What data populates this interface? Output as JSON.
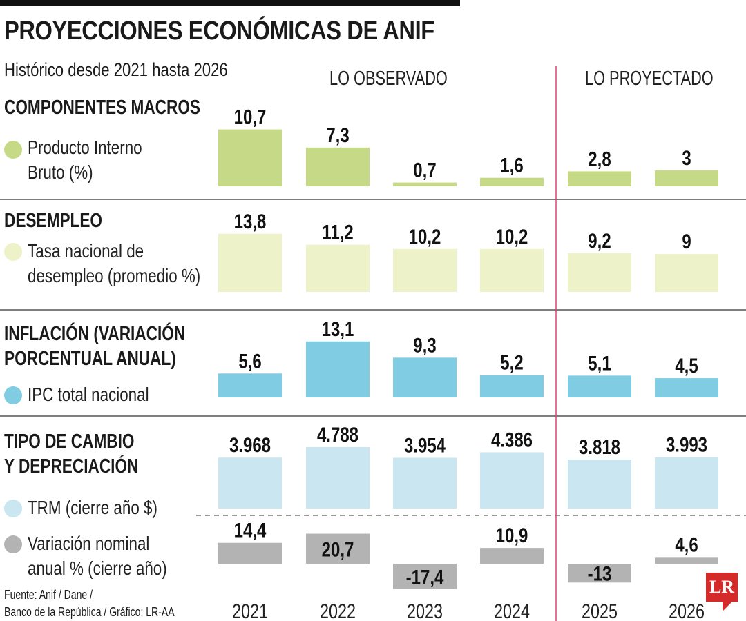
{
  "title": "PROYECCIONES ECONÓMICAS DE ANIF",
  "subtitle": "Histórico desde 2021 hasta 2026",
  "observed_label": "LO OBSERVADO",
  "projected_label": "LO PROYECTADO",
  "source": [
    "Fuente: Anif / Dane /",
    "Banco de la República / Gráfico: LR-AA"
  ],
  "logo": "LR",
  "colors": {
    "gdp": "#c5d986",
    "unemployment": "#eef2c8",
    "inflation": "#80cce3",
    "trm": "#c9e6f1",
    "variation": "#b3b3b3",
    "divider": "#d8437c"
  },
  "sections": [
    {
      "title": [
        "COMPONENTES MACROS"
      ],
      "legend": [
        "Producto Interno",
        "Bruto (%)"
      ]
    },
    {
      "title": [
        "DESEMPLEO"
      ],
      "legend": [
        "Tasa nacional de",
        "desempleo (promedio %)"
      ]
    },
    {
      "title": [
        "INFLACIÓN (VARIACIÓN",
        "PORCENTUAL ANUAL)"
      ],
      "legend": [
        "IPC total nacional"
      ]
    },
    {
      "title": [
        "TIPO DE CAMBIO",
        "Y DEPRECIACIÓN"
      ],
      "legend": [
        "TRM (cierre año $)"
      ],
      "legend2": [
        "Variación nominal",
        "anual % (cierre año)"
      ]
    }
  ],
  "chart_data": {
    "type": "bar",
    "categories": [
      "2021",
      "2022",
      "2023",
      "2024",
      "2025",
      "2026"
    ],
    "observed_years": [
      "2021",
      "2022",
      "2023",
      "2024"
    ],
    "projected_years": [
      "2025",
      "2026"
    ],
    "series": [
      {
        "name": "Producto Interno Bruto (%)",
        "values": [
          10.7,
          7.3,
          0.7,
          1.6,
          2.8,
          3
        ],
        "labels": [
          "10,7",
          "7,3",
          "0,7",
          "1,6",
          "2,8",
          "3"
        ]
      },
      {
        "name": "Tasa nacional de desempleo (promedio %)",
        "values": [
          13.8,
          11.2,
          10.2,
          10.2,
          9.2,
          9
        ],
        "labels": [
          "13,8",
          "11,2",
          "10,2",
          "10,2",
          "9,2",
          "9"
        ]
      },
      {
        "name": "IPC total nacional",
        "values": [
          5.6,
          13.1,
          9.3,
          5.2,
          5.1,
          4.5
        ],
        "labels": [
          "5,6",
          "13,1",
          "9,3",
          "5,2",
          "5,1",
          "4,5"
        ]
      },
      {
        "name": "TRM (cierre año $)",
        "values": [
          3968,
          4788,
          3954,
          4386,
          3818,
          3993
        ],
        "labels": [
          "3.968",
          "4.788",
          "3.954",
          "4.386",
          "3.818",
          "3.993"
        ]
      },
      {
        "name": "Variación nominal anual % (cierre año)",
        "values": [
          14.4,
          20.7,
          -17.4,
          10.9,
          -13,
          4.6
        ],
        "labels": [
          "14,4",
          "20,7",
          "-17,4",
          "10,9",
          "-13",
          "4,6"
        ]
      }
    ]
  }
}
